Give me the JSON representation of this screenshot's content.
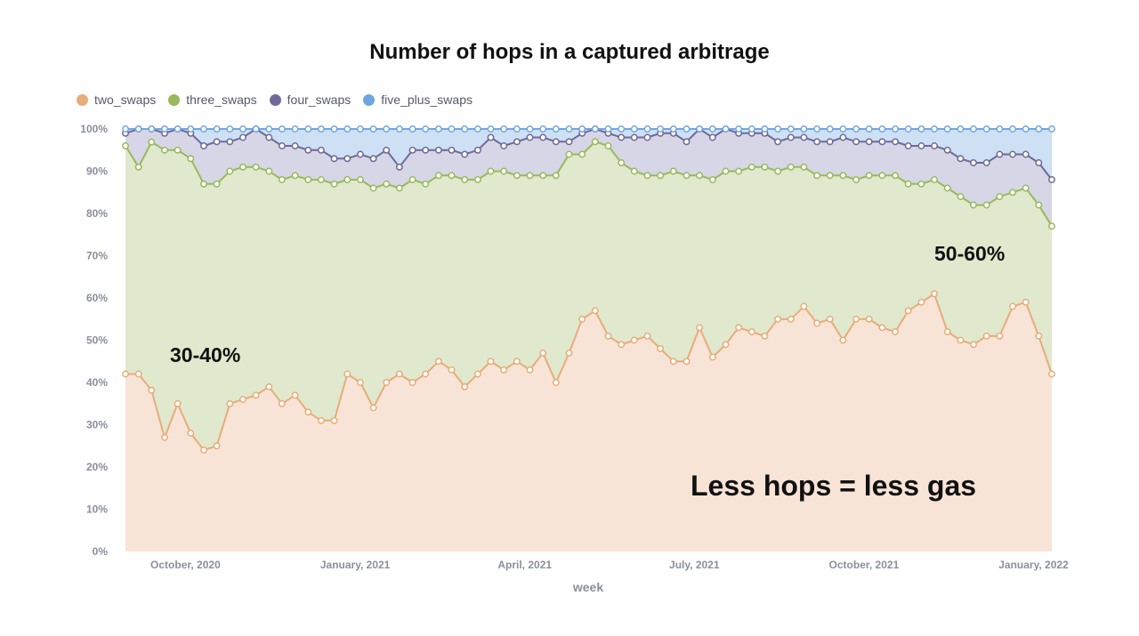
{
  "chart_data": {
    "type": "area",
    "stacked": "percent",
    "title": "Number of hops in a captured arbitrage",
    "xlabel": "week",
    "ylabel": "",
    "ylim": [
      0,
      100
    ],
    "yticks": [
      "0%",
      "10%",
      "20%",
      "30%",
      "40%",
      "50%",
      "60%",
      "70%",
      "80%",
      "90%",
      "100%"
    ],
    "xticks": [
      {
        "label": "October, 2020",
        "week_index": 4.6
      },
      {
        "label": "January, 2021",
        "week_index": 17.6
      },
      {
        "label": "April, 2021",
        "week_index": 30.6
      },
      {
        "label": "July, 2021",
        "week_index": 43.6
      },
      {
        "label": "October, 2021",
        "week_index": 56.6
      },
      {
        "label": "January, 2022",
        "week_index": 69.6
      }
    ],
    "grid": false,
    "legend_position": "top-left",
    "series": [
      {
        "name": "two_swaps",
        "color": "#e8ac7a",
        "fill": "#f8e4d6",
        "values": [
          42,
          42,
          37,
          27,
          35,
          28,
          24,
          25,
          35,
          36,
          37,
          39,
          35,
          37,
          33,
          31,
          31,
          42,
          40,
          34,
          40,
          42,
          40,
          42,
          45,
          43,
          39,
          42,
          45,
          43,
          45,
          43,
          47,
          40,
          47,
          55,
          57,
          51,
          49,
          50,
          51,
          48,
          45,
          45,
          53,
          46,
          49,
          53,
          52,
          51,
          55,
          55,
          58,
          54,
          55,
          50,
          55,
          55,
          53,
          52,
          57,
          59,
          61,
          52,
          50,
          49,
          51,
          51,
          58,
          59,
          51,
          42
        ]
      },
      {
        "name": "three_swaps",
        "color": "#98b95c",
        "fill": "#e0e9cd",
        "values": [
          54,
          49,
          57,
          68,
          60,
          65,
          63,
          62,
          55,
          55,
          54,
          51,
          53,
          52,
          55,
          57,
          56,
          46,
          48,
          52,
          47,
          44,
          48,
          45,
          44,
          46,
          49,
          46,
          45,
          47,
          44,
          46,
          42,
          49,
          47,
          39,
          40,
          45,
          43,
          40,
          38,
          41,
          45,
          44,
          36,
          42,
          41,
          37,
          39,
          40,
          35,
          36,
          33,
          35,
          34,
          39,
          33,
          34,
          36,
          37,
          30,
          28,
          27,
          34,
          34,
          33,
          31,
          33,
          27,
          27,
          31,
          35
        ]
      },
      {
        "name": "four_swaps",
        "color": "#6f6a98",
        "fill": "#d6d6e6",
        "values": [
          3,
          9,
          3,
          4,
          5,
          6,
          9,
          10,
          7,
          7,
          9,
          8,
          8,
          7,
          7,
          7,
          6,
          5,
          6,
          7,
          8,
          5,
          7,
          8,
          6,
          6,
          6,
          7,
          8,
          6,
          8,
          9,
          9,
          8,
          3,
          5,
          3,
          3,
          6,
          8,
          9,
          10,
          9,
          8,
          11,
          10,
          10,
          9,
          8,
          8,
          7,
          7,
          7,
          8,
          8,
          9,
          9,
          8,
          8,
          8,
          9,
          9,
          8,
          9,
          9,
          10,
          10,
          10,
          9,
          8,
          10,
          11
        ]
      },
      {
        "name": "five_plus_swaps",
        "color": "#6fa6e0",
        "fill": "#cde0f4",
        "values": [
          1,
          0,
          0,
          1,
          0,
          1,
          4,
          3,
          3,
          2,
          0,
          2,
          4,
          4,
          5,
          5,
          7,
          7,
          6,
          7,
          5,
          9,
          5,
          5,
          5,
          5,
          6,
          5,
          2,
          4,
          3,
          2,
          2,
          3,
          3,
          1,
          0,
          1,
          2,
          2,
          2,
          1,
          1,
          3,
          0,
          2,
          0,
          1,
          1,
          1,
          3,
          2,
          2,
          3,
          3,
          2,
          3,
          3,
          3,
          3,
          4,
          4,
          4,
          5,
          7,
          8,
          8,
          6,
          6,
          6,
          8,
          12
        ]
      }
    ]
  },
  "annotations": {
    "left_range": "30-40%",
    "right_range": "50-60%",
    "headline": "Less hops = less gas"
  }
}
